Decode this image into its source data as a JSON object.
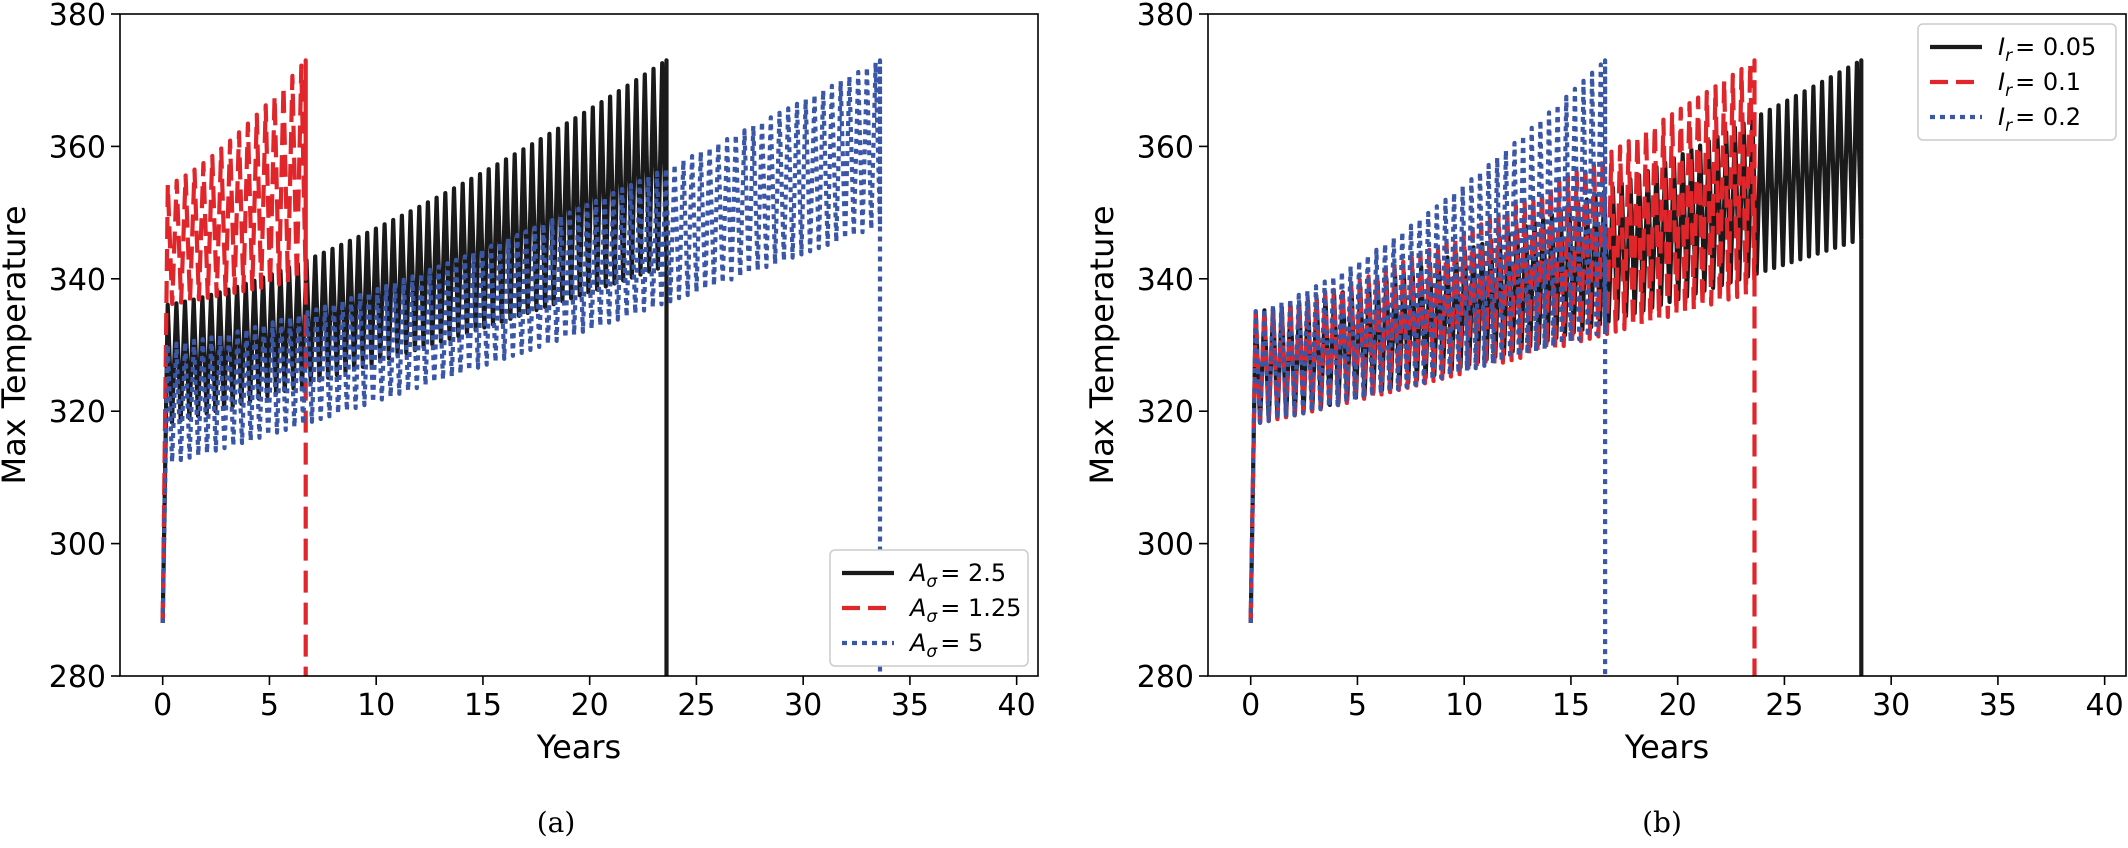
{
  "chart_data": [
    {
      "type": "line",
      "panel_label": "(a)",
      "xlabel": "Years",
      "ylabel": "Max Temperature",
      "xlim": [
        -2,
        41
      ],
      "ylim": [
        280,
        380
      ],
      "xticks": [
        0,
        5,
        10,
        15,
        20,
        25,
        30,
        35,
        40
      ],
      "yticks": [
        280,
        300,
        320,
        340,
        360,
        380
      ],
      "grid": false,
      "legend_position": "lower-right",
      "series": [
        {
          "name": "A_σ = 2.5",
          "label_symbol": "A",
          "label_sub": "σ",
          "label_value": "= 2.5",
          "color": "#1a1a1a",
          "style": "solid",
          "start": 288,
          "end_year": 23.6,
          "upper": [
            336,
            373
          ],
          "lower": [
            318,
            342
          ]
        },
        {
          "name": "A_σ = 1.25",
          "label_symbol": "A",
          "label_sub": "σ",
          "label_value": "= 1.25",
          "color": "#e0252b",
          "style": "dashed",
          "start": 288,
          "end_year": 6.7,
          "upper": [
            354,
            373
          ],
          "lower": [
            336,
            340
          ]
        },
        {
          "name": "A_σ = 5",
          "label_symbol": "A",
          "label_sub": "σ",
          "label_value": "= 5",
          "color": "#3a56a6",
          "style": "dotted",
          "start": 288,
          "end_year": 33.6,
          "upper": [
            330,
            373
          ],
          "lower": [
            312,
            348
          ]
        }
      ]
    },
    {
      "type": "line",
      "panel_label": "(b)",
      "xlabel": "Years",
      "ylabel": "Max Temperature",
      "xlim": [
        -2,
        41
      ],
      "ylim": [
        280,
        380
      ],
      "xticks": [
        0,
        5,
        10,
        15,
        20,
        25,
        30,
        35,
        40
      ],
      "yticks": [
        280,
        300,
        320,
        340,
        360,
        380
      ],
      "grid": false,
      "legend_position": "upper-right",
      "series": [
        {
          "name": "I_r = 0.05",
          "label_symbol": "I",
          "label_sub": "r",
          "label_value": "= 0.05",
          "color": "#1a1a1a",
          "style": "solid",
          "start": 288,
          "end_year": 28.6,
          "upper": [
            335,
            373
          ],
          "lower": [
            318,
            346
          ]
        },
        {
          "name": "I_r = 0.1",
          "label_symbol": "I",
          "label_sub": "r",
          "label_value": "= 0.1",
          "color": "#e0252b",
          "style": "dashed",
          "start": 288,
          "end_year": 23.6,
          "upper": [
            335,
            373
          ],
          "lower": [
            318,
            338
          ]
        },
        {
          "name": "I_r = 0.2",
          "label_symbol": "I",
          "label_sub": "r",
          "label_value": "= 0.2",
          "color": "#3a56a6",
          "style": "dotted",
          "start": 288,
          "end_year": 16.6,
          "upper": [
            335,
            373
          ],
          "lower": [
            318,
            332
          ]
        }
      ]
    }
  ]
}
